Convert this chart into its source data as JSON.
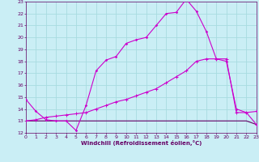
{
  "title": "",
  "xlabel": "Windchill (Refroidissement éolien,°C)",
  "bg_color": "#caeef5",
  "grid_color": "#a8dce0",
  "line_color1": "#cc00cc",
  "line_color2": "#660066",
  "x_min": 0,
  "x_max": 23,
  "y_min": 12,
  "y_max": 23,
  "line1_x": [
    0,
    1,
    2,
    3,
    4,
    5,
    6,
    7,
    8,
    9,
    10,
    11,
    12,
    13,
    14,
    15,
    16,
    17,
    18,
    19,
    20,
    21,
    22,
    23
  ],
  "line1_y": [
    14.8,
    13.8,
    13.1,
    13.0,
    13.0,
    12.2,
    14.3,
    17.2,
    18.1,
    18.4,
    19.5,
    19.8,
    20.0,
    21.0,
    22.0,
    22.1,
    23.2,
    22.2,
    20.5,
    18.2,
    18.0,
    14.0,
    13.7,
    13.8
  ],
  "line2_x": [
    0,
    1,
    2,
    3,
    4,
    5,
    6,
    7,
    8,
    9,
    10,
    11,
    12,
    13,
    14,
    15,
    16,
    17,
    18,
    19,
    20,
    21,
    22,
    23
  ],
  "line2_y": [
    13.0,
    13.0,
    13.0,
    13.0,
    13.0,
    13.0,
    13.0,
    13.0,
    13.0,
    13.0,
    13.0,
    13.0,
    13.0,
    13.0,
    13.0,
    13.0,
    13.0,
    13.0,
    13.0,
    13.0,
    13.0,
    13.0,
    13.0,
    12.7
  ],
  "line3_x": [
    0,
    1,
    2,
    3,
    4,
    5,
    6,
    7,
    8,
    9,
    10,
    11,
    12,
    13,
    14,
    15,
    16,
    17,
    18,
    19,
    20,
    21,
    22,
    23
  ],
  "line3_y": [
    13.0,
    13.1,
    13.3,
    13.4,
    13.5,
    13.6,
    13.7,
    14.0,
    14.3,
    14.6,
    14.8,
    15.1,
    15.4,
    15.7,
    16.2,
    16.7,
    17.2,
    18.0,
    18.2,
    18.2,
    18.2,
    13.7,
    13.7,
    12.7
  ]
}
